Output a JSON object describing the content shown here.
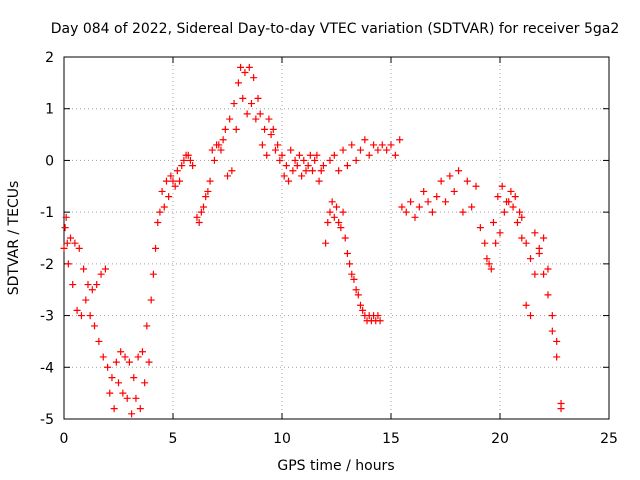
{
  "chart_data": {
    "type": "scatter",
    "title": "Day 084 of 2022, Sidereal Day-to-day VTEC variation (SDTVAR) for receiver 5ga2",
    "xlabel": "GPS time / hours",
    "ylabel": "SDTVAR / TECUs",
    "xlim": [
      0,
      25
    ],
    "ylim": [
      -5,
      2
    ],
    "xticks": [
      0,
      5,
      10,
      15,
      20,
      25
    ],
    "yticks": [
      -5,
      -4,
      -3,
      -2,
      -1,
      0,
      1,
      2
    ],
    "xtick_labels": [
      "0",
      "5",
      "10",
      "15",
      "20",
      "25"
    ],
    "ytick_labels": [
      "-5",
      "-4",
      "-3",
      "-2",
      "-1",
      "0",
      "1",
      "2"
    ],
    "grid": true,
    "marker": "+",
    "color": "#ff0000",
    "series": [
      {
        "name": "segment-1",
        "x": [
          0.0,
          0.05,
          0.1,
          0.15,
          0.2,
          0.3,
          0.4,
          0.5,
          0.6,
          0.7,
          0.8,
          0.9,
          1.0,
          1.1,
          1.2,
          1.3,
          1.4,
          1.5,
          1.6,
          1.7,
          1.8,
          1.9,
          2.0,
          2.1,
          2.2,
          2.3,
          2.4,
          2.5,
          2.6,
          2.7,
          2.8,
          2.9,
          3.0,
          3.1,
          3.2,
          3.3,
          3.4,
          3.5,
          3.6,
          3.7,
          3.8,
          3.9,
          4.0,
          4.1,
          4.2,
          4.3,
          4.4,
          4.5,
          4.6,
          4.7,
          4.8,
          4.9,
          5.0,
          5.1,
          5.2,
          5.3,
          5.4,
          5.5,
          5.6,
          5.7,
          5.8,
          5.9
        ],
        "y": [
          -1.7,
          -1.3,
          -1.1,
          -1.6,
          -2.0,
          -1.5,
          -2.4,
          -1.6,
          -2.9,
          -1.7,
          -3.0,
          -2.1,
          -2.7,
          -2.4,
          -3.0,
          -2.5,
          -3.2,
          -2.4,
          -3.5,
          -2.2,
          -3.8,
          -2.1,
          -4.0,
          -4.5,
          -4.2,
          -4.8,
          -3.9,
          -4.3,
          -3.7,
          -4.5,
          -3.8,
          -4.6,
          -3.9,
          -4.9,
          -4.2,
          -4.6,
          -3.8,
          -4.8,
          -3.7,
          -4.3,
          -3.2,
          -3.9,
          -2.7,
          -2.2,
          -1.7,
          -1.2,
          -1.0,
          -0.6,
          -0.9,
          -0.4,
          -0.7,
          -0.3,
          -0.4,
          -0.5,
          -0.2,
          -0.4,
          -0.1,
          0.0,
          0.1,
          0.1,
          0.0,
          -0.1
        ]
      },
      {
        "name": "segment-2",
        "x": [
          6.1,
          6.2,
          6.3,
          6.4,
          6.5,
          6.6,
          6.7,
          6.8,
          6.9,
          7.0,
          7.1,
          7.2,
          7.3,
          7.4,
          7.5,
          7.6,
          7.7,
          7.8,
          7.9,
          8.0,
          8.1,
          8.2,
          8.3,
          8.4,
          8.5,
          8.6,
          8.7,
          8.8,
          8.9,
          9.0,
          9.1,
          9.2,
          9.3,
          9.4,
          9.5,
          9.6,
          9.7,
          9.8,
          9.9,
          10.0,
          10.1,
          10.2,
          10.3,
          10.4,
          10.5,
          10.6,
          10.7,
          10.8,
          10.9,
          11.0,
          11.1,
          11.2,
          11.3,
          11.4,
          11.5,
          11.6,
          11.7
        ],
        "y": [
          -1.1,
          -1.2,
          -1.0,
          -0.9,
          -0.7,
          -0.6,
          -0.4,
          0.2,
          0.0,
          0.3,
          0.3,
          0.2,
          0.4,
          0.6,
          -0.3,
          0.8,
          -0.2,
          1.1,
          0.6,
          1.5,
          1.8,
          1.2,
          1.7,
          0.9,
          1.8,
          1.1,
          1.6,
          0.8,
          1.2,
          0.9,
          0.3,
          0.6,
          0.1,
          0.8,
          0.5,
          0.6,
          0.2,
          0.3,
          0.0,
          0.1,
          -0.3,
          -0.1,
          -0.4,
          0.2,
          -0.2,
          0.0,
          -0.1,
          0.1,
          -0.3,
          0.0,
          -0.2,
          -0.1,
          0.1,
          -0.2,
          0.0,
          0.1,
          -0.4
        ]
      },
      {
        "name": "segment-3",
        "x": [
          11.8,
          11.9,
          12.0,
          12.1,
          12.2,
          12.3,
          12.4,
          12.5,
          12.6,
          12.7,
          12.8,
          12.9,
          13.0,
          13.1,
          13.2,
          13.3,
          13.4,
          13.5,
          13.6,
          13.7,
          13.8,
          13.9,
          14.0,
          14.1,
          14.2,
          14.3,
          14.4,
          14.5
        ],
        "y": [
          -0.2,
          -0.1,
          -1.6,
          -1.2,
          -1.0,
          -0.8,
          -1.1,
          -0.9,
          -1.2,
          -1.3,
          -1.0,
          -1.5,
          -1.8,
          -2.0,
          -2.2,
          -2.3,
          -2.5,
          -2.6,
          -2.8,
          -2.9,
          -3.0,
          -3.1,
          -3.0,
          -3.1,
          -3.0,
          -3.1,
          -3.0,
          -3.1
        ]
      },
      {
        "name": "segment-4",
        "x": [
          12.2,
          12.4,
          12.6,
          12.8,
          13.0,
          13.2,
          13.4,
          13.6,
          13.8,
          14.0,
          14.2,
          14.4,
          14.6,
          14.8,
          15.0,
          15.2,
          15.4
        ],
        "y": [
          0.0,
          0.1,
          -0.2,
          0.2,
          -0.1,
          0.3,
          0.0,
          0.2,
          0.4,
          0.1,
          0.3,
          0.2,
          0.3,
          0.2,
          0.3,
          0.1,
          0.4
        ]
      },
      {
        "name": "segment-5",
        "x": [
          15.5,
          15.7,
          15.9,
          16.1,
          16.3,
          16.5,
          16.7,
          16.9,
          17.1,
          17.3,
          17.5,
          17.7,
          17.9,
          18.1,
          18.3,
          18.5,
          18.7,
          18.9,
          19.1,
          19.3,
          19.5,
          19.7,
          19.9,
          20.1,
          20.3,
          20.5,
          20.7,
          20.9
        ],
        "y": [
          -0.9,
          -1.0,
          -0.8,
          -1.1,
          -0.9,
          -0.6,
          -0.8,
          -1.0,
          -0.7,
          -0.4,
          -0.8,
          -0.3,
          -0.6,
          -0.2,
          -1.0,
          -0.4,
          -0.9,
          -0.5,
          -1.3,
          -1.6,
          -2.0,
          -1.2,
          -0.7,
          -0.5,
          -0.8,
          -0.6,
          -0.7,
          -1.0
        ]
      },
      {
        "name": "segment-6",
        "x": [
          19.4,
          19.6,
          19.8,
          20.0,
          20.2,
          20.4,
          20.6,
          20.8,
          21.0,
          21.2,
          21.4,
          21.6,
          21.8,
          22.0,
          22.2,
          22.4,
          22.6,
          22.8
        ],
        "y": [
          -1.9,
          -2.1,
          -1.6,
          -1.4,
          -1.0,
          -0.8,
          -0.9,
          -1.2,
          -1.5,
          -2.8,
          -3.0,
          -2.2,
          -1.7,
          -1.5,
          -2.6,
          -3.3,
          -3.8,
          -4.7
        ]
      },
      {
        "name": "segment-7",
        "x": [
          21.0,
          21.2,
          21.4,
          21.6,
          21.8,
          22.0,
          22.2,
          22.4,
          22.6,
          22.8
        ],
        "y": [
          -1.1,
          -1.6,
          -1.9,
          -1.4,
          -1.8,
          -2.2,
          -2.1,
          -3.0,
          -3.5,
          -4.8
        ]
      }
    ]
  }
}
